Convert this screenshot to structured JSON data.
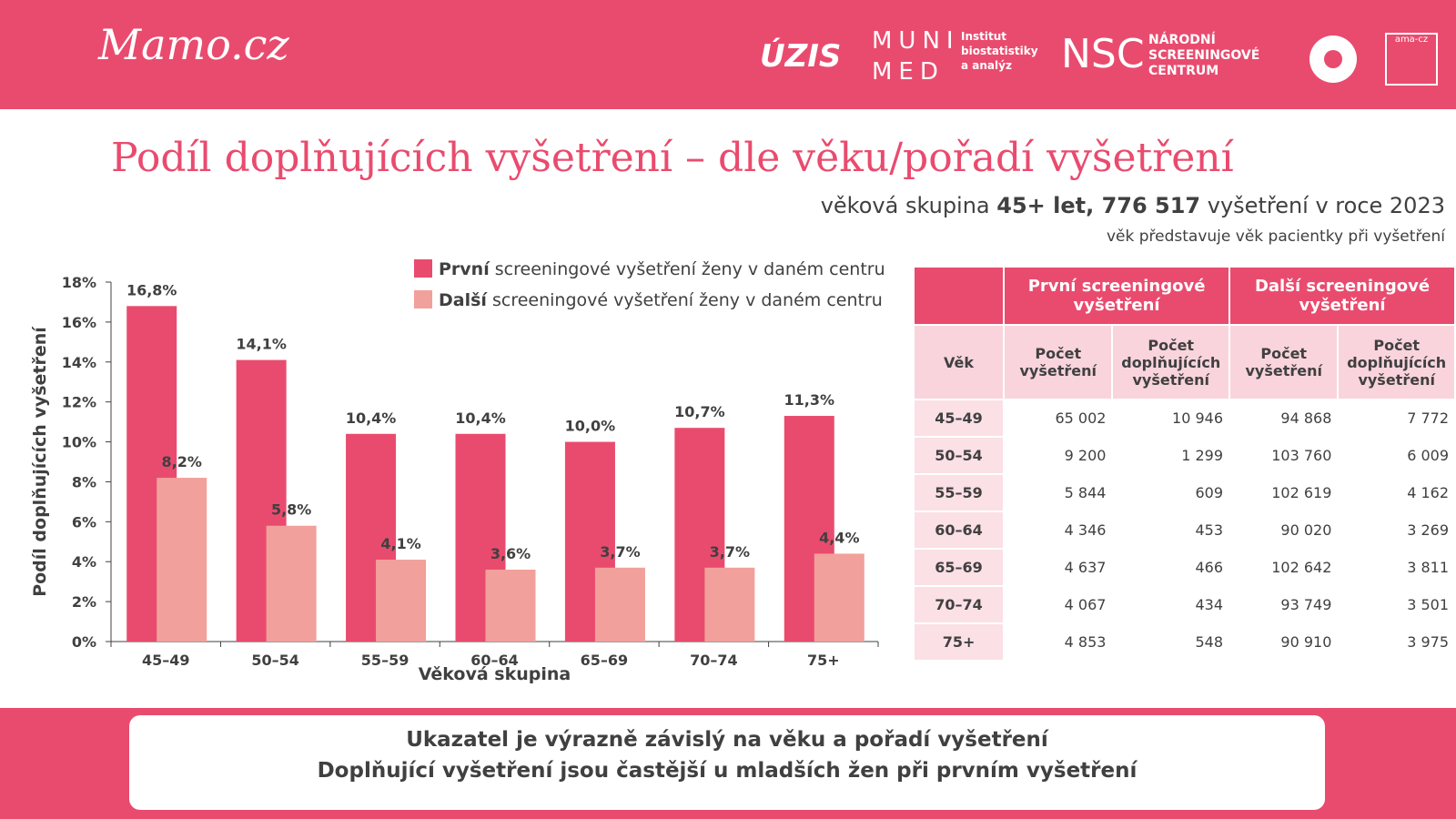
{
  "header": {
    "brand": "Mamo.cz",
    "logos": [
      "ÚZIS",
      "MUNI",
      "MED",
      "Institut biostatistiky a analýz",
      "NSC",
      "NÁRODNÍ SCREENINGOVÉ CENTRUM",
      "ama-cz"
    ]
  },
  "title": "Podíl doplňujících vyšetření – dle věku/pořadí vyšetření",
  "subtitle": [
    "věková skupina ",
    "45+ let, 776 517",
    " vyšetření v roce 2023"
  ],
  "note": "věk představuje věk pacientky při vyšetření",
  "chart_data": {
    "type": "bar",
    "xlabel": "Věková skupina",
    "ylabel": "Podíl doplňujících vyšetření",
    "categories": [
      "45–49",
      "50–54",
      "55–59",
      "60–64",
      "65–69",
      "70–74",
      "75+"
    ],
    "series": [
      {
        "name": "První screeningové vyšetření ženy v daném centru",
        "color": "#e94b6e",
        "values": [
          16.8,
          14.1,
          10.4,
          10.4,
          10.0,
          10.7,
          11.3
        ],
        "value_labels": [
          "16,8%",
          "14,1%",
          "10,4%",
          "10,4%",
          "10,0%",
          "10,7%",
          "11,3%"
        ]
      },
      {
        "name": "Další screeningové vyšetření ženy v daném centru",
        "color": "#f2a09b",
        "values": [
          8.2,
          5.8,
          4.1,
          3.6,
          3.7,
          3.7,
          4.4
        ],
        "value_labels": [
          "8,2%",
          "5,8%",
          "4,1%",
          "3,6%",
          "3,7%",
          "3,7%",
          "4,4%"
        ]
      }
    ],
    "ylim": [
      0,
      18
    ],
    "yticks": [
      {
        "value": 0,
        "label": "0%"
      },
      {
        "value": 2,
        "label": "2%"
      },
      {
        "value": 4,
        "label": "4%"
      },
      {
        "value": 6,
        "label": "6%"
      },
      {
        "value": 8,
        "label": "8%"
      },
      {
        "value": 10,
        "label": "10%"
      },
      {
        "value": 12,
        "label": "12%"
      },
      {
        "value": 14,
        "label": "14%"
      },
      {
        "value": 16,
        "label": "16%"
      },
      {
        "value": 18,
        "label": "18%"
      }
    ],
    "legend": "top-right"
  },
  "table": {
    "groups": [
      "První screeningové vyšetření",
      "Další screeningové vyšetření"
    ],
    "columns": [
      "Věk",
      "Počet vyšetření",
      "Počet doplňujících vyšetření",
      "Počet vyšetření",
      "Počet doplňujících vyšetření"
    ],
    "rows": [
      [
        "45–49",
        "65 002",
        "10 946",
        "94 868",
        "7 772"
      ],
      [
        "50–54",
        "9 200",
        "1 299",
        "103 760",
        "6 009"
      ],
      [
        "55–59",
        "5 844",
        "609",
        "102 619",
        "4 162"
      ],
      [
        "60–64",
        "4 346",
        "453",
        "90 020",
        "3 269"
      ],
      [
        "65–69",
        "4 637",
        "466",
        "102 642",
        "3 811"
      ],
      [
        "70–74",
        "4 067",
        "434",
        "93 749",
        "3 501"
      ],
      [
        "75+",
        "4 853",
        "548",
        "90 910",
        "3 975"
      ]
    ]
  },
  "footer": [
    "Ukazatel je výrazně závislý na věku a pořadí vyšetření",
    "Doplňující vyšetření jsou častější u mladších žen při prvním vyšetření"
  ]
}
